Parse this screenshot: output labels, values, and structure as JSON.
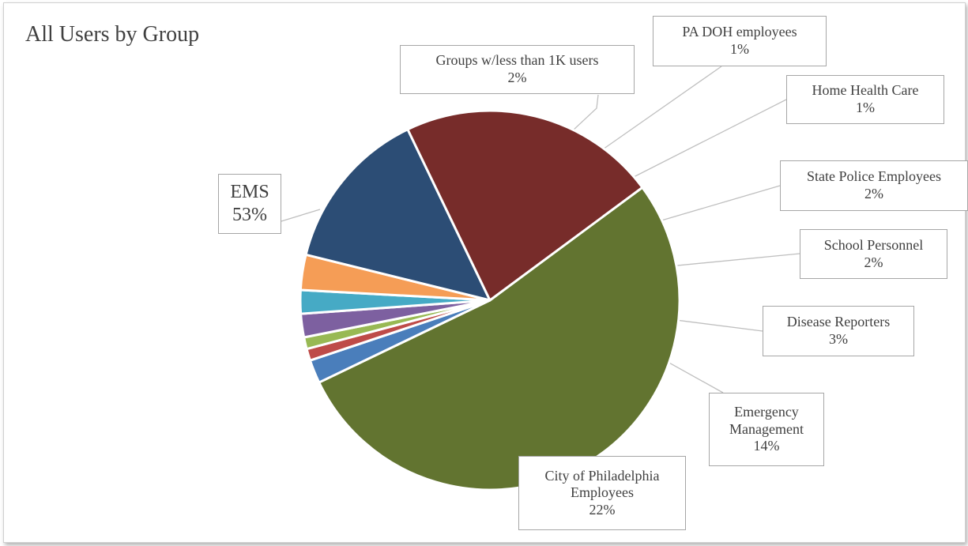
{
  "chart_data": {
    "type": "pie",
    "title": "All Users by Group",
    "slices": [
      {
        "label": "EMS",
        "value": 53,
        "value_label": "53%",
        "color": "#627430"
      },
      {
        "label": "Groups w/less than 1K users",
        "value": 2,
        "value_label": "2%",
        "color": "#4a7ebb"
      },
      {
        "label": "PA DOH employees",
        "value": 1,
        "value_label": "1%",
        "color": "#be4b48"
      },
      {
        "label": "Home Health Care",
        "value": 1,
        "value_label": "1%",
        "color": "#98b954"
      },
      {
        "label": "State Police Employees",
        "value": 2,
        "value_label": "2%",
        "color": "#7d60a0"
      },
      {
        "label": "School Personnel",
        "value": 2,
        "value_label": "2%",
        "color": "#46aac5"
      },
      {
        "label": "Disease Reporters",
        "value": 3,
        "value_label": "3%",
        "color": "#f59d56"
      },
      {
        "label": "Emergency Management",
        "value": 14,
        "value_label": "14%",
        "color": "#2c4d75"
      },
      {
        "label": "City of Philadelphia Employees",
        "value": 22,
        "value_label": "22%",
        "color": "#772c2a"
      }
    ]
  }
}
